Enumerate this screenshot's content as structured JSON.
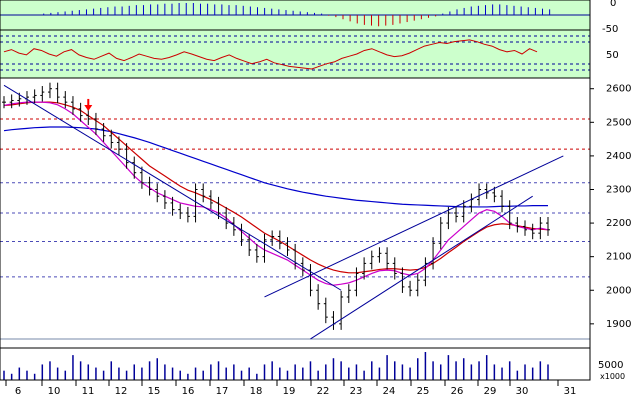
{
  "colors": {
    "panel_bg_indicator": "#ccffcc",
    "panel_bg_price": "#ffffff",
    "frame": "#000000",
    "ma_short": "#cc00cc",
    "ma_mid": "#cc0000",
    "ma_long": "#0000cc",
    "trendline": "#000099",
    "resistance_dashed": "#cc0000",
    "support_dashed": "#000099",
    "bars": "#000000",
    "histogram_up": "#0000cc",
    "histogram_down": "#cc0000",
    "oscillator_line": "#cc0000",
    "arrow": "#ff0000"
  },
  "chart_data": {
    "type": "candlestick-ohlc",
    "title": "",
    "x_labels": [
      "6",
      "10",
      "11",
      "12",
      "15",
      "16",
      "17",
      "18",
      "19",
      "22",
      "23",
      "24",
      "25",
      "26",
      "29",
      "30",
      "31"
    ],
    "price_axis": {
      "ticks": [
        1900,
        2000,
        2100,
        2200,
        2300,
        2400,
        2500,
        2600
      ],
      "range": [
        1840,
        2620
      ]
    },
    "indicator_axis": {
      "top_labels": [
        "0",
        "-50"
      ],
      "osc_labels": [
        "50"
      ],
      "range": [
        0,
        100
      ]
    },
    "volume_axis": {
      "ticks": [
        "5000",
        "x1000"
      ]
    },
    "price_series": [
      2560,
      2565,
      2570,
      2575,
      2580,
      2590,
      2600,
      2575,
      2560,
      2540,
      2520,
      2510,
      2480,
      2460,
      2440,
      2420,
      2380,
      2350,
      2320,
      2300,
      2280,
      2260,
      2240,
      2230,
      2220,
      2300,
      2280,
      2260,
      2230,
      2200,
      2180,
      2150,
      2120,
      2100,
      2150,
      2160,
      2140,
      2120,
      2080,
      2060,
      2000,
      1960,
      1920,
      1900,
      1980,
      2000,
      2050,
      2080,
      2100,
      2110,
      2080,
      2050,
      2010,
      2000,
      2030,
      2080,
      2140,
      2200,
      2230,
      2220,
      2250,
      2270,
      2300,
      2290,
      2280,
      2250,
      2200,
      2190,
      2180,
      2170,
      2200,
      2180
    ],
    "ma_short": [
      2550,
      2555,
      2558,
      2560,
      2560,
      2560,
      2558,
      2552,
      2540,
      2525,
      2505,
      2485,
      2465,
      2440,
      2415,
      2390,
      2365,
      2340,
      2320,
      2305,
      2290,
      2280,
      2270,
      2260,
      2255,
      2250,
      2248,
      2240,
      2230,
      2215,
      2195,
      2175,
      2155,
      2135,
      2120,
      2110,
      2100,
      2090,
      2075,
      2060,
      2045,
      2030,
      2020,
      2015,
      2018,
      2022,
      2030,
      2040,
      2050,
      2058,
      2060,
      2058,
      2050,
      2045,
      2050,
      2065,
      2090,
      2120,
      2150,
      2170,
      2190,
      2210,
      2230,
      2240,
      2235,
      2220,
      2200,
      2190,
      2185,
      2180,
      2185,
      2180
    ],
    "ma_mid": [
      2550,
      2552,
      2555,
      2558,
      2560,
      2560,
      2560,
      2558,
      2552,
      2545,
      2535,
      2520,
      2505,
      2490,
      2470,
      2450,
      2430,
      2410,
      2390,
      2370,
      2355,
      2340,
      2325,
      2310,
      2298,
      2290,
      2280,
      2270,
      2258,
      2245,
      2232,
      2218,
      2202,
      2186,
      2170,
      2158,
      2146,
      2132,
      2118,
      2104,
      2090,
      2078,
      2068,
      2060,
      2055,
      2052,
      2052,
      2055,
      2058,
      2062,
      2064,
      2064,
      2062,
      2060,
      2062,
      2068,
      2080,
      2095,
      2112,
      2128,
      2145,
      2160,
      2175,
      2188,
      2195,
      2198,
      2196,
      2192,
      2188,
      2184,
      2182,
      2180
    ],
    "ma_long": [
      2475,
      2478,
      2480,
      2482,
      2484,
      2485,
      2486,
      2486,
      2486,
      2485,
      2484,
      2482,
      2480,
      2476,
      2472,
      2466,
      2460,
      2454,
      2447,
      2440,
      2432,
      2424,
      2416,
      2408,
      2400,
      2392,
      2384,
      2376,
      2368,
      2360,
      2352,
      2344,
      2336,
      2328,
      2320,
      2314,
      2308,
      2302,
      2297,
      2292,
      2288,
      2284,
      2280,
      2277,
      2274,
      2271,
      2268,
      2266,
      2264,
      2262,
      2260,
      2258,
      2256,
      2255,
      2254,
      2253,
      2252,
      2251,
      2250,
      2249,
      2248,
      2248,
      2248,
      2248,
      2249,
      2250,
      2250,
      2251,
      2251,
      2252,
      2252,
      2252
    ],
    "histogram": [
      2,
      3,
      4,
      5,
      6,
      7,
      8,
      9,
      10,
      11,
      12,
      12,
      13,
      14,
      14,
      15,
      15,
      16,
      16,
      17,
      17,
      17,
      16,
      16,
      15,
      15,
      14,
      14,
      13,
      12,
      11,
      10,
      9,
      8,
      7,
      6,
      5,
      4,
      3,
      2,
      -1,
      -3,
      -6,
      -9,
      -12,
      -14,
      -15,
      -16,
      -15,
      -14,
      -12,
      -10,
      -8,
      -6,
      -4,
      -2,
      2,
      5,
      8,
      10,
      12,
      13,
      14,
      15,
      15,
      14,
      13,
      12,
      11,
      10,
      9,
      8
    ],
    "oscillator": [
      55,
      60,
      52,
      48,
      62,
      58,
      50,
      45,
      55,
      60,
      48,
      42,
      38,
      45,
      52,
      40,
      35,
      42,
      50,
      45,
      40,
      38,
      42,
      48,
      55,
      50,
      44,
      38,
      35,
      42,
      48,
      40,
      34,
      28,
      32,
      38,
      30,
      26,
      22,
      20,
      18,
      16,
      22,
      28,
      32,
      40,
      45,
      50,
      58,
      62,
      55,
      48,
      44,
      46,
      52,
      60,
      68,
      72,
      76,
      74,
      78,
      80,
      82,
      78,
      72,
      68,
      60,
      55,
      58,
      50,
      62,
      55
    ],
    "volume": [
      3,
      2,
      4,
      3,
      2,
      5,
      6,
      4,
      3,
      8,
      6,
      5,
      4,
      3,
      6,
      4,
      3,
      5,
      4,
      6,
      7,
      5,
      4,
      3,
      2,
      4,
      3,
      5,
      6,
      4,
      5,
      3,
      4,
      2,
      5,
      6,
      4,
      3,
      5,
      4,
      6,
      3,
      5,
      7,
      6,
      4,
      5,
      3,
      6,
      4,
      8,
      6,
      5,
      4,
      7,
      9,
      6,
      5,
      8,
      6,
      7,
      5,
      6,
      8,
      5,
      4,
      6,
      3,
      5,
      4,
      6,
      5
    ],
    "horizontal_levels": {
      "resistance_dashed": [
        2510,
        2420
      ],
      "support_dashed": [
        2320,
        2230,
        2145,
        2040
      ],
      "base_solid": 1855
    },
    "trendlines": [
      {
        "from": [
          0,
          2610
        ],
        "to": [
          44,
          2000
        ]
      },
      {
        "from": [
          40,
          1855
        ],
        "to": [
          69,
          2280
        ]
      },
      {
        "from": [
          34,
          1980
        ],
        "to": [
          73,
          2400
        ]
      }
    ],
    "arrow_index": 11
  }
}
